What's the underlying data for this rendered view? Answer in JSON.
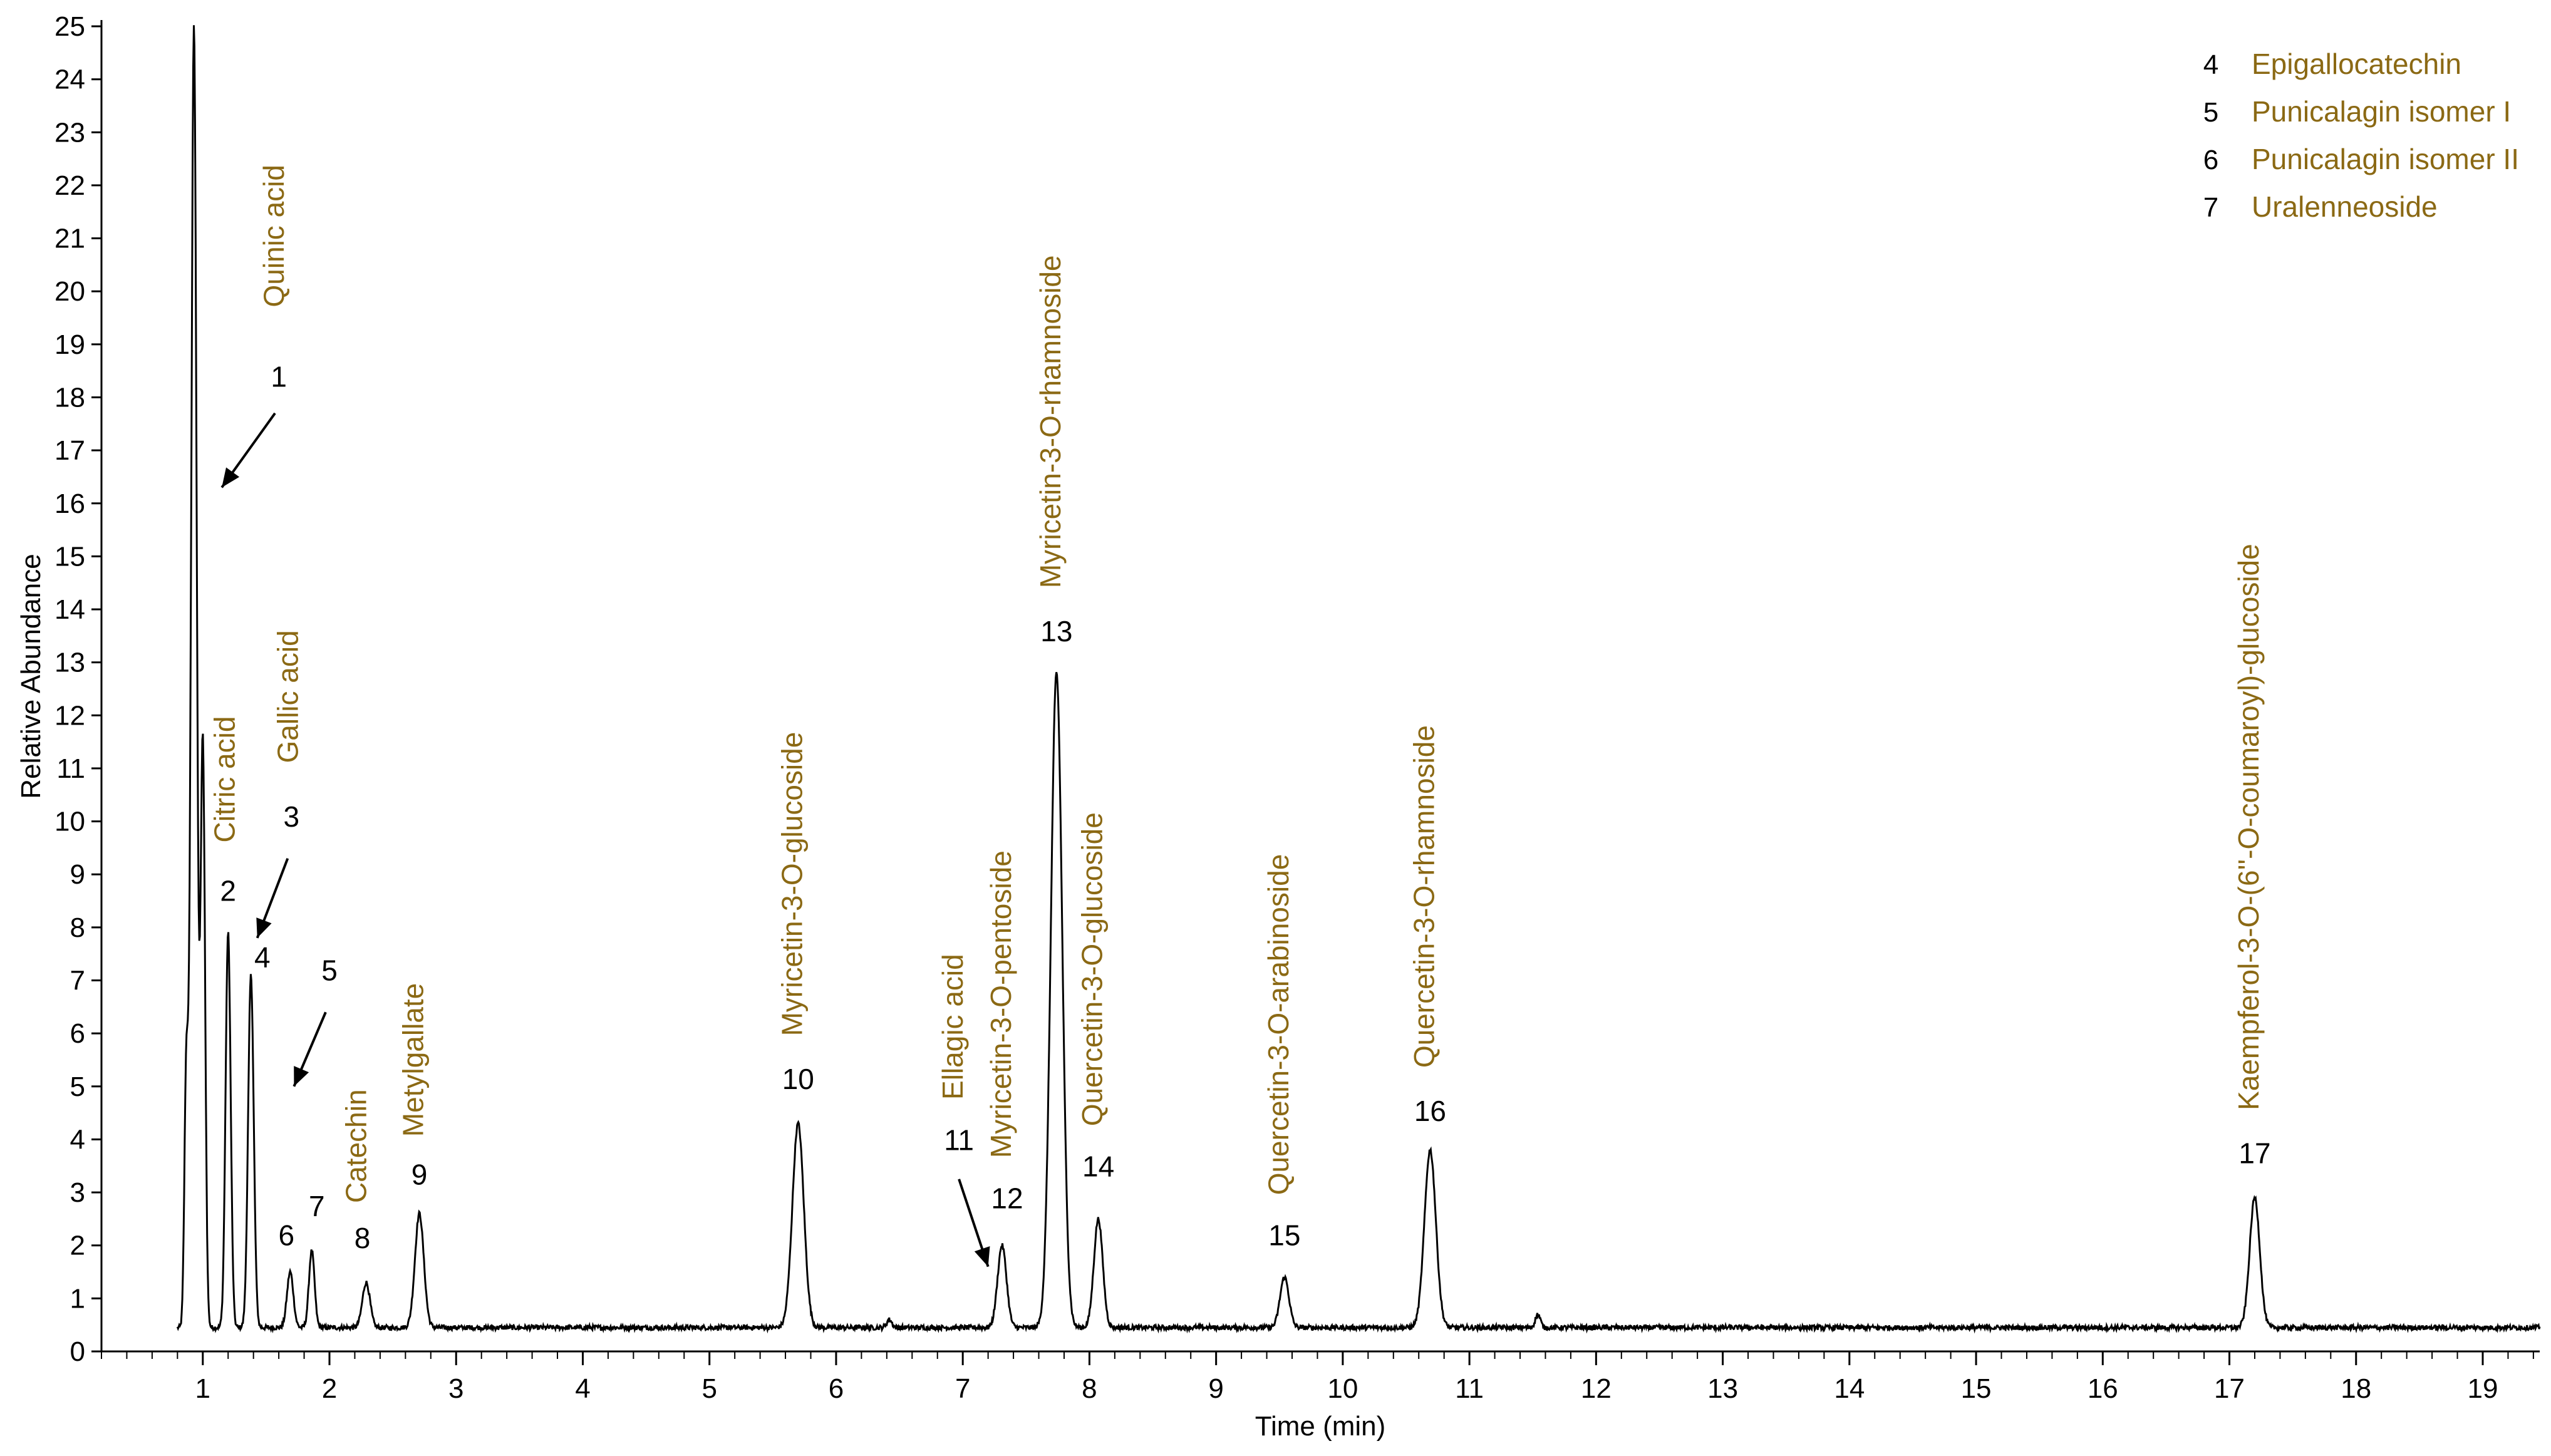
{
  "colors": {
    "annotation": "#8B6914",
    "trace": "#000000",
    "axis": "#000000",
    "background": "#ffffff"
  },
  "chart_data": {
    "type": "line",
    "title": "",
    "xlabel": "Time (min)",
    "ylabel": "Relative Abundance",
    "xlim": [
      0.2,
      19.45
    ],
    "ylim": [
      0,
      25
    ],
    "x_ticks": [
      1,
      2,
      3,
      4,
      5,
      6,
      7,
      8,
      9,
      10,
      11,
      12,
      13,
      14,
      15,
      16,
      17,
      18,
      19
    ],
    "x_minor_step": 0.2,
    "y_ticks": [
      0,
      1,
      2,
      3,
      4,
      5,
      6,
      7,
      8,
      9,
      10,
      11,
      12,
      13,
      14,
      15,
      16,
      17,
      18,
      19,
      20,
      21,
      22,
      23,
      24,
      25
    ],
    "grid": false,
    "baseline": 0.45,
    "peaks": [
      {
        "x": 0.87,
        "y": 5.3,
        "w": 0.015
      },
      {
        "x": 0.93,
        "y": 25.0,
        "w": 0.022
      },
      {
        "x": 1.0,
        "y": 11.5,
        "w": 0.018
      },
      {
        "x": 1.2,
        "y": 7.9,
        "w": 0.02
      },
      {
        "x": 1.38,
        "y": 7.1,
        "w": 0.022
      },
      {
        "x": 1.69,
        "y": 1.5,
        "w": 0.025
      },
      {
        "x": 1.86,
        "y": 1.9,
        "w": 0.022
      },
      {
        "x": 2.29,
        "y": 1.3,
        "w": 0.03
      },
      {
        "x": 2.71,
        "y": 2.6,
        "w": 0.035
      },
      {
        "x": 5.7,
        "y": 4.3,
        "w": 0.045
      },
      {
        "x": 6.42,
        "y": 0.6,
        "w": 0.02
      },
      {
        "x": 7.31,
        "y": 2.0,
        "w": 0.035
      },
      {
        "x": 7.74,
        "y": 12.8,
        "w": 0.045
      },
      {
        "x": 8.07,
        "y": 2.5,
        "w": 0.035
      },
      {
        "x": 9.54,
        "y": 1.4,
        "w": 0.035
      },
      {
        "x": 10.69,
        "y": 3.8,
        "w": 0.045
      },
      {
        "x": 11.54,
        "y": 0.7,
        "w": 0.02
      },
      {
        "x": 17.2,
        "y": 2.9,
        "w": 0.04
      }
    ],
    "peak_labels": [
      {
        "num": "1",
        "name": "Quinic acid",
        "num_x": 1.6,
        "num_y": 18.2,
        "name_x": 1.64,
        "name_y": 19.7
      },
      {
        "num": "2",
        "name": "Citric acid",
        "num_x": 1.2,
        "num_y": 8.5,
        "name_x": 1.25,
        "name_y": 9.6
      },
      {
        "num": "3",
        "name": "Gallic acid",
        "num_x": 1.7,
        "num_y": 9.9,
        "name_x": 1.75,
        "name_y": 11.1
      },
      {
        "num": "4",
        "name": "",
        "num_x": 1.47,
        "num_y": 7.25
      },
      {
        "num": "5",
        "name": "",
        "num_x": 2.0,
        "num_y": 7.0
      },
      {
        "num": "6",
        "name": "",
        "num_x": 1.66,
        "num_y": 2.0
      },
      {
        "num": "7",
        "name": "",
        "num_x": 1.9,
        "num_y": 2.55
      },
      {
        "num": "8",
        "name": "Catechin",
        "num_x": 2.26,
        "num_y": 1.95,
        "name_x": 2.29,
        "name_y": 2.8
      },
      {
        "num": "9",
        "name": "Metylgallate",
        "num_x": 2.71,
        "num_y": 3.15,
        "name_x": 2.74,
        "name_y": 4.05
      },
      {
        "num": "10",
        "name": "Myricetin-3-O-glucoside",
        "num_x": 5.7,
        "num_y": 4.95,
        "name_x": 5.73,
        "name_y": 5.95
      },
      {
        "num": "11",
        "name": "Ellagic acid",
        "num_x": 6.97,
        "num_y": 3.8,
        "name_x": 7.0,
        "name_y": 4.75
      },
      {
        "num": "12",
        "name": "Myricetin-3-O-pentoside",
        "num_x": 7.35,
        "num_y": 2.7,
        "name_x": 7.38,
        "name_y": 3.65
      },
      {
        "num": "13",
        "name": "Myricetin-3-O-rhamnoside",
        "num_x": 7.74,
        "num_y": 13.4,
        "name_x": 7.77,
        "name_y": 14.4
      },
      {
        "num": "14",
        "name": "Quercetin-3-O-glucoside",
        "num_x": 8.07,
        "num_y": 3.3,
        "name_x": 8.1,
        "name_y": 4.25
      },
      {
        "num": "15",
        "name": "Quercetin-3-O-arabinoside",
        "num_x": 9.54,
        "num_y": 2.0,
        "name_x": 9.57,
        "name_y": 2.95
      },
      {
        "num": "16",
        "name": "Quercetin-3-O-rhamnoside",
        "num_x": 10.69,
        "num_y": 4.35,
        "name_x": 10.72,
        "name_y": 5.35
      },
      {
        "num": "17",
        "name": "Kaempferol-3-O-(6''-O-coumaroyl)-glucoside",
        "num_x": 17.2,
        "num_y": 3.55,
        "name_x": 17.23,
        "name_y": 4.55
      }
    ],
    "arrows": [
      {
        "from": [
          1.57,
          17.7
        ],
        "to": [
          1.15,
          16.3
        ]
      },
      {
        "from": [
          1.67,
          9.3
        ],
        "to": [
          1.43,
          7.8
        ]
      },
      {
        "from": [
          1.97,
          6.4
        ],
        "to": [
          1.72,
          5.0
        ]
      },
      {
        "from": [
          6.97,
          3.25
        ],
        "to": [
          7.2,
          1.6
        ]
      }
    ],
    "legend_entries": [
      {
        "num": "4",
        "name": "Epigallocatechin"
      },
      {
        "num": "5",
        "name": "Punicalagin isomer I"
      },
      {
        "num": "6",
        "name": "Punicalagin isomer II"
      },
      {
        "num": "7",
        "name": "Uralenneoside"
      }
    ],
    "legend_position": "top-right"
  }
}
